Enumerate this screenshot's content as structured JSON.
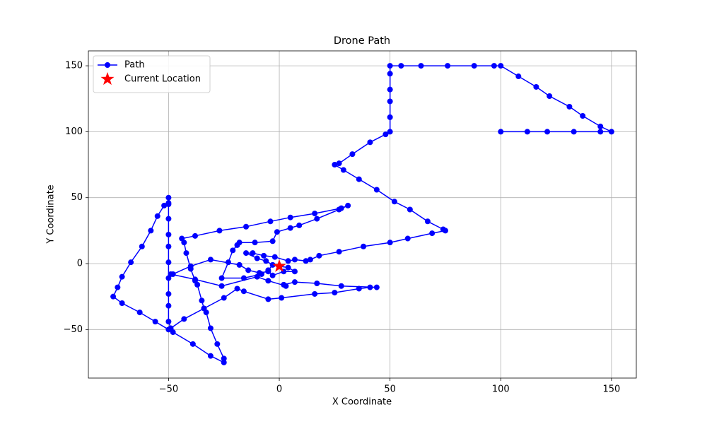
{
  "chart_data": {
    "type": "line",
    "title": "Drone Path",
    "x_label": "X Coordinate",
    "y_label": "Y Coordinate",
    "xlim": [
      -86.2,
      161.2
    ],
    "ylim": [
      -86.8,
      161.3
    ],
    "xticks": [
      {
        "value": -50,
        "label": "−50"
      },
      0,
      50,
      100,
      150
    ],
    "yticks": [
      {
        "value": -50,
        "label": "−50"
      },
      0,
      50,
      100,
      150
    ],
    "grid": true,
    "legend": "upper left",
    "series": [
      {
        "name": "Path",
        "color": "#0000ff",
        "marker": "circle",
        "x": [
          100,
          112,
          121,
          133,
          145,
          150,
          145,
          137,
          131,
          122,
          116,
          108,
          100,
          97,
          88,
          76,
          64,
          55,
          50,
          50,
          50,
          50,
          50,
          50,
          48,
          41,
          33,
          27,
          25,
          29,
          36,
          44,
          52,
          59,
          67,
          74,
          75,
          69,
          58,
          50,
          38,
          27,
          18,
          14,
          12,
          7,
          4,
          -2,
          -7,
          -12,
          -15,
          -10,
          -6,
          -3,
          -5,
          -8,
          -16,
          -26,
          -23,
          -21,
          -19,
          -18,
          -11,
          -3,
          -1,
          5,
          9,
          17,
          27,
          31,
          28,
          16,
          5,
          -4,
          -15,
          -27,
          -38,
          -44,
          -43,
          -42,
          -40,
          -38,
          -37,
          -35,
          -34,
          -33,
          -31,
          -28,
          -25,
          -25,
          -31,
          -39,
          -48,
          -50,
          -56,
          -63,
          -71,
          -75,
          -73,
          -71,
          -67,
          -62,
          -58,
          -55,
          -52,
          -50,
          -50,
          -50,
          -50,
          -50,
          -50,
          -50,
          -50,
          -50,
          -50,
          -50,
          -49,
          -43,
          -34,
          -25,
          -19,
          -16,
          -5,
          1,
          16,
          25,
          36,
          41,
          44,
          28,
          17,
          7,
          2,
          3,
          -5,
          -10,
          -26,
          -38,
          -49,
          -48,
          -40,
          -31,
          -18,
          -14,
          -9,
          -5,
          -3,
          2,
          7,
          4,
          0
        ],
        "y": [
          100,
          100,
          100,
          100,
          100,
          100,
          104,
          112,
          119,
          127,
          134,
          142,
          150,
          150,
          150,
          150,
          150,
          150,
          150,
          144,
          132,
          123,
          111,
          100,
          98,
          92,
          83,
          76,
          75,
          71,
          64,
          56,
          47,
          41,
          32,
          26,
          25,
          23,
          19,
          16,
          13,
          9,
          6,
          3,
          2,
          3,
          2,
          5,
          6,
          8,
          8,
          4,
          2,
          -1,
          -5,
          -8,
          -11,
          -11,
          1,
          10,
          14,
          16,
          16,
          17,
          24,
          27,
          29,
          34,
          41,
          44,
          42,
          38,
          35,
          32,
          28,
          25,
          21,
          19,
          16,
          8,
          -4,
          -13,
          -16,
          -28,
          -34,
          -37,
          -49,
          -61,
          -72,
          -75,
          -70,
          -61,
          -52,
          -50,
          -44,
          -37,
          -30,
          -25,
          -18,
          -10,
          1,
          13,
          25,
          36,
          44,
          46,
          50,
          45,
          34,
          22,
          13,
          1,
          -11,
          -23,
          -32,
          -44,
          -49,
          -42,
          -34,
          -26,
          -19,
          -21,
          -27,
          -26,
          -23,
          -22,
          -19,
          -18,
          -18,
          -17,
          -15,
          -14,
          -16,
          -17,
          -13,
          -10,
          -17,
          -12,
          -8,
          -8,
          -2,
          3,
          -1,
          -5,
          -7,
          -6,
          -9,
          -6,
          -6,
          -3,
          -2
        ]
      },
      {
        "name": "Current Location",
        "color": "#ff0000",
        "marker": "star",
        "x": [
          0
        ],
        "y": [
          -2
        ]
      }
    ]
  }
}
